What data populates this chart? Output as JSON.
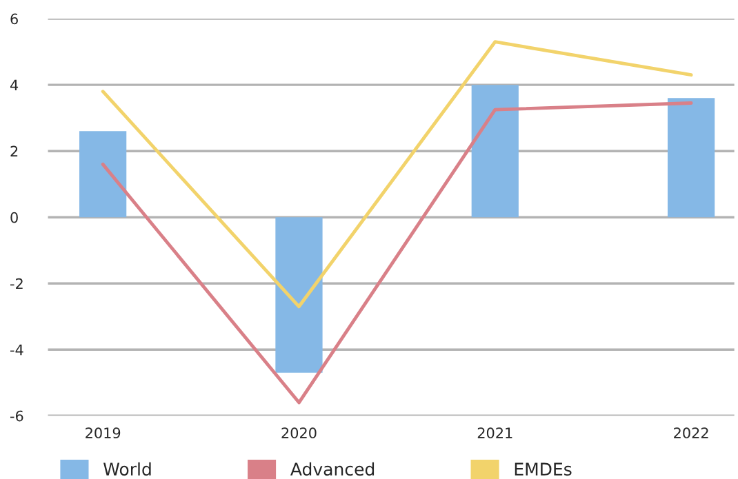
{
  "chart_data": {
    "type": "bar",
    "categories": [
      "2019",
      "2020",
      "2021",
      "2022"
    ],
    "series": [
      {
        "name": "World",
        "color": "#85b8e6",
        "values": [
          2.6,
          -4.7,
          4.0,
          3.6
        ]
      },
      {
        "name": "Advanced",
        "type": "line",
        "color": "#d98088",
        "values": [
          1.6,
          -5.6,
          3.25,
          3.45
        ]
      },
      {
        "name": "EMDEs",
        "type": "line",
        "color": "#f2d36b",
        "values": [
          3.8,
          -2.7,
          5.3,
          4.3
        ]
      }
    ],
    "ylim": [
      -6,
      6
    ],
    "yticks": [
      -6,
      -4,
      -2,
      0,
      2,
      4,
      6
    ],
    "grid": "y",
    "legend": "bottom"
  }
}
